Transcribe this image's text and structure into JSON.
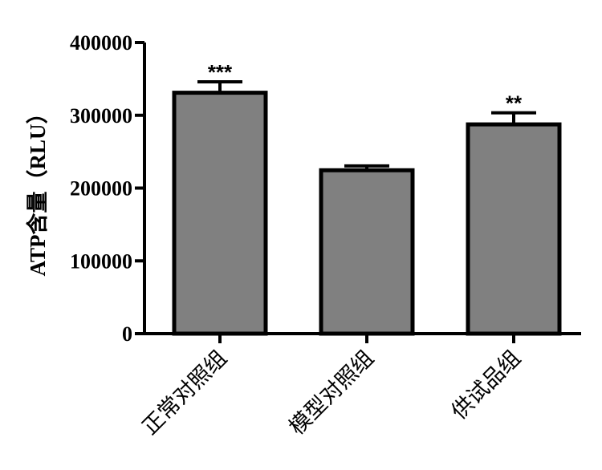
{
  "chart_data": {
    "type": "bar",
    "categories": [
      "正常对照组",
      "模型对照组",
      "供试品组"
    ],
    "values": [
      331000,
      224500,
      287500
    ],
    "errors": [
      15000,
      6000,
      16000
    ],
    "significance": [
      "***",
      "",
      "**"
    ],
    "ylabel": "ATP含量（RLU）",
    "xlabel": "",
    "ylim": [
      0,
      400000
    ],
    "yticks": [
      0,
      100000,
      200000,
      300000,
      400000
    ],
    "ytick_labels": [
      "0",
      "100000",
      "200000",
      "300000",
      "400000"
    ],
    "bar_color": "#808080",
    "edge_color": "#000000",
    "grid": false,
    "legend": "none"
  }
}
